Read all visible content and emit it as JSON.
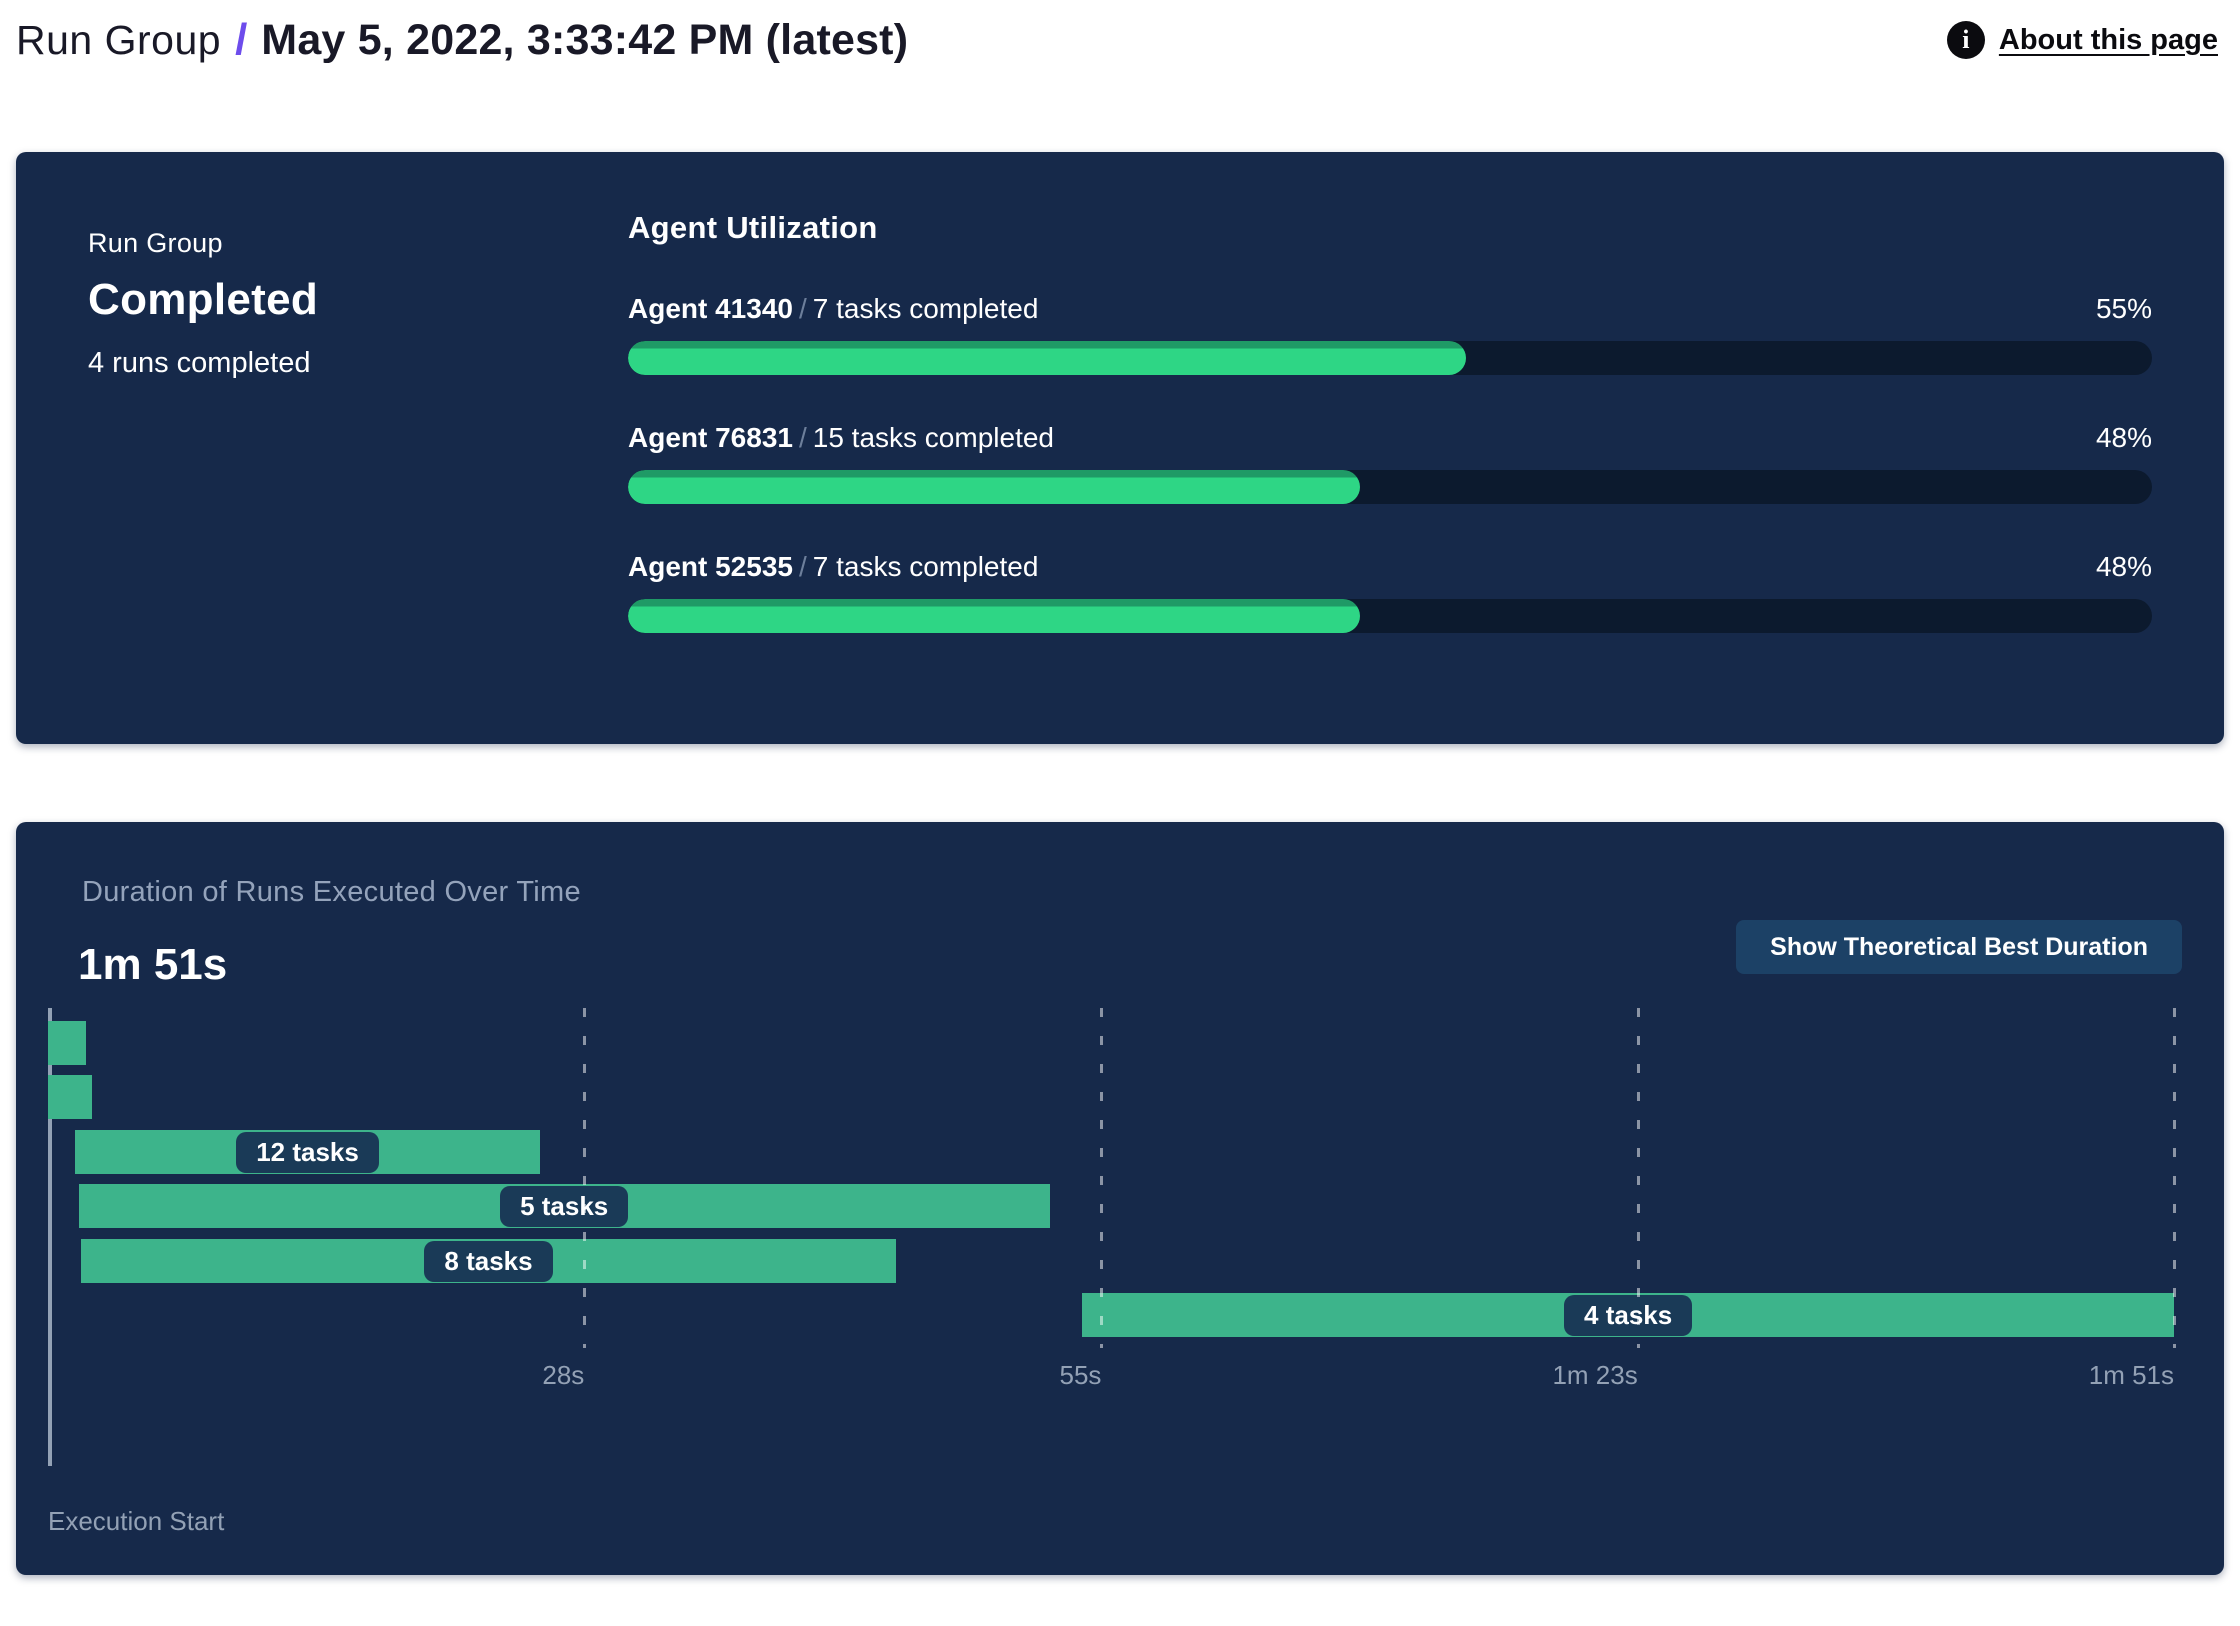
{
  "header": {
    "breadcrumb_root": "Run Group",
    "separator": "/",
    "title": "May 5, 2022, 3:33:42 PM (latest)",
    "info_icon_glyph": "i",
    "about_link": "About this page"
  },
  "summary_card": {
    "label": "Run Group",
    "status": "Completed",
    "runs_completed": "4 runs completed",
    "utilization": {
      "title": "Agent Utilization",
      "separator": "/",
      "agents": [
        {
          "name": "Agent 41340",
          "tasks": "7 tasks completed",
          "percent": 55,
          "percent_label": "55%"
        },
        {
          "name": "Agent 76831",
          "tasks": "15 tasks completed",
          "percent": 48,
          "percent_label": "48%"
        },
        {
          "name": "Agent 52535",
          "tasks": "7 tasks completed",
          "percent": 48,
          "percent_label": "48%"
        }
      ]
    }
  },
  "duration_card": {
    "title": "Duration of Runs Executed Over Time",
    "total_duration": "1m 51s",
    "button_label": "Show Theoretical Best Duration",
    "execution_start_label": "Execution Start"
  },
  "chart_data": {
    "type": "gantt",
    "title": "Duration of Runs Executed Over Time",
    "total_duration_label": "1m 51s",
    "time_axis_range_s": [
      0,
      111
    ],
    "grid": "dashed-vertical",
    "axis_ticks": [
      {
        "s": 28,
        "label": "28s"
      },
      {
        "s": 55,
        "label": "55s"
      },
      {
        "s": 83,
        "label": "1m 23s"
      },
      {
        "s": 111,
        "label": "1m 51s"
      }
    ],
    "bars": [
      {
        "start_s": 0,
        "end_s": 2.0,
        "label": ""
      },
      {
        "start_s": 0,
        "end_s": 2.3,
        "label": ""
      },
      {
        "start_s": 1.4,
        "end_s": 25.7,
        "label": "12 tasks"
      },
      {
        "start_s": 1.6,
        "end_s": 52.3,
        "label": "5 tasks"
      },
      {
        "start_s": 1.7,
        "end_s": 44.3,
        "label": "8 tasks"
      },
      {
        "start_s": 54.0,
        "end_s": 111.0,
        "label": "4 tasks"
      }
    ],
    "x_axis_origin_label": "Execution Start",
    "colors": {
      "bar": "#3db48b",
      "pill_bg": "#1a3a57",
      "axis": "#93a1b5"
    }
  },
  "colors": {
    "card_bg": "#16294a",
    "progress_fill": "#2ed685",
    "progress_fill_edge": "#1f9a66",
    "progress_track": "#0c1a2e",
    "button_bg": "#1c4166",
    "accent_purple": "#6d4cec",
    "muted_text": "#94a3bb"
  }
}
